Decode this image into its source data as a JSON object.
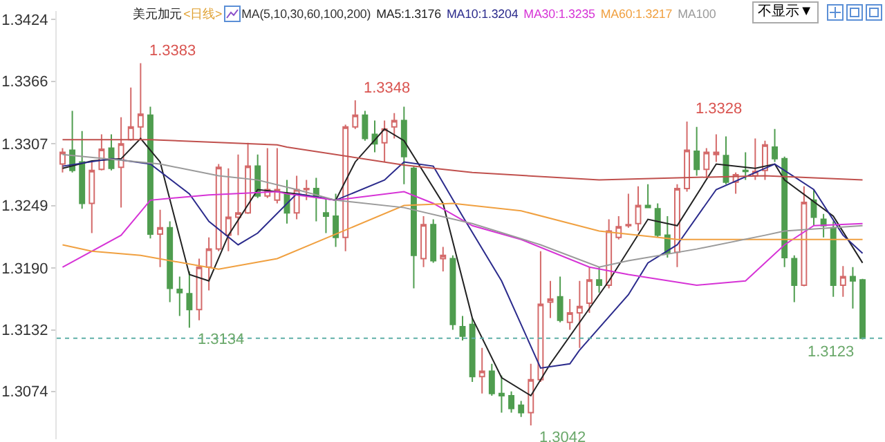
{
  "chart_data": {
    "type": "candlestick",
    "title": "美元加元",
    "subtitle": "<日线>",
    "legend_title": "MA(5,10,30,60,100,200)",
    "legend": "top",
    "categories": [
      null,
      null,
      null,
      null,
      null,
      null,
      null,
      null,
      null,
      null,
      null,
      null,
      null,
      null,
      null,
      null,
      null,
      null,
      null,
      null,
      null,
      null,
      null,
      null,
      null,
      null,
      null,
      null,
      null,
      null,
      null,
      null,
      null,
      null,
      null,
      null,
      null,
      null,
      null,
      null,
      null,
      null,
      null,
      null,
      null,
      null,
      null,
      null,
      null,
      null,
      null,
      null,
      null,
      null,
      null,
      null,
      null,
      null,
      null,
      null,
      null,
      null,
      null,
      null,
      null,
      null,
      null,
      null,
      null,
      null,
      null,
      null,
      null,
      null,
      null,
      null,
      null,
      null,
      null,
      null,
      null,
      null,
      null
    ],
    "ohlc": [
      [
        1.3288,
        1.3303,
        1.328,
        1.3299
      ],
      [
        1.3301,
        1.3338,
        1.328,
        1.3282
      ],
      [
        1.329,
        1.3319,
        1.3246,
        1.3251
      ],
      [
        1.3251,
        1.329,
        1.3223,
        1.3282
      ],
      [
        1.3283,
        1.3316,
        1.3282,
        1.3302
      ],
      [
        1.3303,
        1.3316,
        1.3282,
        1.3284
      ],
      [
        1.3285,
        1.3332,
        1.3247,
        1.3307
      ],
      [
        1.3311,
        1.336,
        1.331,
        1.3323
      ],
      [
        1.3323,
        1.3383,
        1.3311,
        1.3335
      ],
      [
        1.3334,
        1.3342,
        1.3218,
        1.3222
      ],
      [
        1.3222,
        1.3245,
        1.3191,
        1.3228
      ],
      [
        1.3228,
        1.3234,
        1.3158,
        1.3171
      ],
      [
        1.317,
        1.3182,
        1.3145,
        1.3167
      ],
      [
        1.3166,
        1.3187,
        1.3134,
        1.3151
      ],
      [
        1.3151,
        1.3199,
        1.3141,
        1.3191
      ],
      [
        1.3191,
        1.3219,
        1.3169,
        1.3208
      ],
      [
        1.3208,
        1.3288,
        1.3206,
        1.3285
      ],
      [
        1.3221,
        1.3284,
        1.3206,
        1.3238
      ],
      [
        1.3238,
        1.3297,
        1.3221,
        1.3242
      ],
      [
        1.3242,
        1.3308,
        1.3241,
        1.3286
      ],
      [
        1.3286,
        1.3297,
        1.3256,
        1.3258
      ],
      [
        1.3258,
        1.3303,
        1.3256,
        1.3264
      ],
      [
        1.3254,
        1.3303,
        1.3251,
        1.3264
      ],
      [
        1.326,
        1.3273,
        1.3232,
        1.3242
      ],
      [
        1.3242,
        1.3277,
        1.3236,
        1.3264
      ],
      [
        1.3264,
        1.3273,
        1.3254,
        1.3265
      ],
      [
        1.3265,
        1.3275,
        1.3234,
        1.3257
      ],
      [
        1.3242,
        1.3256,
        1.3223,
        1.3239
      ],
      [
        1.3239,
        1.326,
        1.321,
        1.3219
      ],
      [
        1.3219,
        1.3325,
        1.3206,
        1.3323
      ],
      [
        1.3323,
        1.3348,
        1.3321,
        1.3334
      ],
      [
        1.3334,
        1.3338,
        1.331,
        1.3312
      ],
      [
        1.3316,
        1.3329,
        1.3299,
        1.3307
      ],
      [
        1.3308,
        1.3329,
        1.329,
        1.3321
      ],
      [
        1.3323,
        1.3336,
        1.3312,
        1.3329
      ],
      [
        1.3329,
        1.3342,
        1.3269,
        1.3295
      ],
      [
        1.3284,
        1.3286,
        1.3171,
        1.3202
      ],
      [
        1.3199,
        1.3239,
        1.3191,
        1.3231
      ],
      [
        1.3231,
        1.3236,
        1.3195,
        1.3197
      ],
      [
        1.3199,
        1.321,
        1.3187,
        1.3202
      ],
      [
        1.3199,
        1.3202,
        1.3132,
        1.3137
      ],
      [
        1.3135,
        1.3145,
        1.3122,
        1.3126
      ],
      [
        1.3137,
        1.3143,
        1.3083,
        1.3088
      ],
      [
        1.3088,
        1.3115,
        1.3072,
        1.3093
      ],
      [
        1.3093,
        1.31,
        1.307,
        1.3072
      ],
      [
        1.3072,
        1.3089,
        1.3054,
        1.307
      ],
      [
        1.307,
        1.3074,
        1.3054,
        1.3058
      ],
      [
        1.3061,
        1.3065,
        1.305,
        1.3054
      ],
      [
        1.3054,
        1.31,
        1.3042,
        1.3085
      ],
      [
        1.3085,
        1.3206,
        1.3083,
        1.3156
      ],
      [
        1.3158,
        1.3178,
        1.3143,
        1.3161
      ],
      [
        1.3163,
        1.3182,
        1.3139,
        1.3141
      ],
      [
        1.3139,
        1.3161,
        1.3132,
        1.3148
      ],
      [
        1.3148,
        1.3178,
        1.3115,
        1.3154
      ],
      [
        1.3157,
        1.3191,
        1.3148,
        1.3179
      ],
      [
        1.3179,
        1.3191,
        1.3167,
        1.3174
      ],
      [
        1.3174,
        1.3236,
        1.3171,
        1.3225
      ],
      [
        1.3219,
        1.3239,
        1.3217,
        1.3229
      ],
      [
        1.323,
        1.326,
        1.3228,
        1.3231
      ],
      [
        1.3232,
        1.3267,
        1.3225,
        1.3249
      ],
      [
        1.3249,
        1.3269,
        1.3247,
        1.3247
      ],
      [
        1.3246,
        1.3251,
        1.3219,
        1.3221
      ],
      [
        1.3221,
        1.3239,
        1.32,
        1.3204
      ],
      [
        1.3205,
        1.3269,
        1.3191,
        1.3265
      ],
      [
        1.3265,
        1.3328,
        1.3262,
        1.3301
      ],
      [
        1.33,
        1.3323,
        1.3277,
        1.3283
      ],
      [
        1.3283,
        1.3303,
        1.3275,
        1.3299
      ],
      [
        1.3297,
        1.3316,
        1.329,
        1.3299
      ],
      [
        1.3296,
        1.3314,
        1.3269,
        1.3271
      ],
      [
        1.3271,
        1.328,
        1.326,
        1.3278
      ],
      [
        1.3282,
        1.3299,
        1.3273,
        1.3281
      ],
      [
        1.3277,
        1.3312,
        1.3273,
        1.3281
      ],
      [
        1.3282,
        1.331,
        1.3273,
        1.3306
      ],
      [
        1.3304,
        1.3321,
        1.329,
        1.3293
      ],
      [
        1.3293,
        1.3295,
        1.3191,
        1.32
      ],
      [
        1.3199,
        1.3202,
        1.3158,
        1.3174
      ],
      [
        1.3174,
        1.3267,
        1.3173,
        1.3252
      ],
      [
        1.3254,
        1.3264,
        1.323,
        1.3238
      ],
      [
        1.3236,
        1.3241,
        1.3219,
        1.323
      ],
      [
        1.3228,
        1.3234,
        1.3163,
        1.3174
      ],
      [
        1.3174,
        1.3192,
        1.3163,
        1.3182
      ],
      [
        1.3182,
        1.3191,
        1.3152,
        1.3178
      ],
      [
        1.3179,
        1.318,
        1.3123,
        1.3124
      ]
    ],
    "colors": [
      "#d46a6a",
      "#4f9d4f",
      "#4f9d4f",
      "#d46a6a",
      "#d46a6a",
      "#4f9d4f",
      "#d46a6a",
      "#d46a6a",
      "#d46a6a",
      "#4f9d4f",
      "#d46a6a",
      "#4f9d4f",
      "#4f9d4f",
      "#4f9d4f",
      "#d46a6a",
      "#d46a6a",
      "#d46a6a",
      "#d46a6a",
      "#d46a6a",
      "#d46a6a",
      "#4f9d4f",
      "#d46a6a",
      "#d46a6a",
      "#4f9d4f",
      "#d46a6a",
      "#d46a6a",
      "#4f9d4f",
      "#4f9d4f",
      "#4f9d4f",
      "#d46a6a",
      "#d46a6a",
      "#4f9d4f",
      "#4f9d4f",
      "#d46a6a",
      "#d46a6a",
      "#4f9d4f",
      "#4f9d4f",
      "#d46a6a",
      "#4f9d4f",
      "#d46a6a",
      "#4f9d4f",
      "#4f9d4f",
      "#4f9d4f",
      "#d46a6a",
      "#4f9d4f",
      "#4f9d4f",
      "#4f9d4f",
      "#4f9d4f",
      "#d46a6a",
      "#d46a6a",
      "#d46a6a",
      "#4f9d4f",
      "#d46a6a",
      "#d46a6a",
      "#d46a6a",
      "#4f9d4f",
      "#d46a6a",
      "#d46a6a",
      "#d46a6a",
      "#d46a6a",
      "#4f9d4f",
      "#4f9d4f",
      "#4f9d4f",
      "#d46a6a",
      "#d46a6a",
      "#4f9d4f",
      "#d46a6a",
      "#d46a6a",
      "#4f9d4f",
      "#d46a6a",
      "#4f9d4f",
      "#d46a6a",
      "#d46a6a",
      "#4f9d4f",
      "#4f9d4f",
      "#4f9d4f",
      "#d46a6a",
      "#4f9d4f",
      "#4f9d4f",
      "#4f9d4f",
      "#d46a6a",
      "#4f9d4f",
      "#4f9d4f"
    ],
    "series": [
      {
        "type": "line",
        "name": "MA5:1.3176",
        "color": "#222222",
        "values": [
          1.3284,
          null,
          null,
          1.3291,
          null,
          null,
          1.3293,
          null,
          1.3312,
          null,
          1.329,
          null,
          null,
          1.3184,
          null,
          1.3178,
          null,
          1.3221,
          null,
          null,
          1.3264,
          null,
          null,
          null,
          1.326,
          null,
          null,
          null,
          1.3254,
          null,
          1.329,
          null,
          null,
          1.3321,
          null,
          1.331,
          null,
          null,
          null,
          1.3251,
          null,
          null,
          1.3143,
          null,
          null,
          1.3087,
          null,
          null,
          1.307,
          null,
          1.31,
          null,
          null,
          null,
          1.3152,
          null,
          1.3178,
          null,
          null,
          null,
          1.3236,
          null,
          null,
          1.323,
          null,
          null,
          null,
          1.3288,
          null,
          null,
          null,
          1.3284,
          null,
          1.3288,
          1.3273,
          null,
          null,
          null,
          null,
          1.3239,
          null,
          null,
          1.3195
        ]
      },
      {
        "type": "line",
        "name": "MA10:1.3204",
        "color": "#2b2b8c",
        "values": [
          1.3286,
          null,
          null,
          null,
          null,
          1.3293,
          null,
          null,
          null,
          1.3288,
          null,
          null,
          null,
          1.326,
          null,
          1.3234,
          null,
          null,
          1.3212,
          null,
          1.3223,
          null,
          null,
          null,
          1.326,
          null,
          null,
          null,
          1.3254,
          null,
          null,
          null,
          null,
          1.3273,
          null,
          1.329,
          null,
          null,
          1.3286,
          null,
          null,
          1.3239,
          null,
          null,
          null,
          1.3178,
          null,
          null,
          null,
          1.3096,
          null,
          null,
          1.31,
          1.3113,
          null,
          null,
          null,
          null,
          1.3165,
          null,
          1.3195,
          null,
          null,
          1.3212,
          null,
          null,
          null,
          1.3264,
          null,
          null,
          null,
          null,
          null,
          1.3288,
          null,
          null,
          null,
          1.3264,
          null,
          null,
          1.3221,
          null,
          1.3204
        ]
      },
      {
        "type": "line",
        "name": "MA30:1.3235",
        "color": "#d633d6",
        "values": [
          1.3191,
          null,
          null,
          null,
          null,
          null,
          1.3221,
          null,
          null,
          1.3254,
          null,
          null,
          null,
          null,
          null,
          1.3259,
          null,
          null,
          null,
          null,
          null,
          null,
          1.3262,
          1.326,
          null,
          null,
          null,
          null,
          1.3254,
          null,
          null,
          null,
          null,
          null,
          null,
          1.3262,
          null,
          null,
          1.3251,
          null,
          null,
          null,
          1.323,
          null,
          null,
          null,
          null,
          1.3217,
          null,
          null,
          null,
          null,
          null,
          null,
          1.3191,
          null,
          null,
          null,
          1.3184,
          null,
          null,
          null,
          null,
          null,
          null,
          1.3174,
          null,
          null,
          null,
          null,
          1.3178,
          null,
          null,
          null,
          1.3212,
          null,
          null,
          1.323,
          null,
          null,
          null,
          null,
          1.3232
        ]
      },
      {
        "type": "line",
        "name": "MA60:1.3217",
        "color": "#f0a040",
        "values": [
          1.3212,
          null,
          null,
          1.3206,
          null,
          null,
          null,
          null,
          1.3202,
          null,
          null,
          null,
          null,
          null,
          null,
          null,
          1.3189,
          null,
          null,
          null,
          null,
          null,
          1.3199,
          null,
          null,
          null,
          null,
          null,
          null,
          null,
          null,
          null,
          null,
          null,
          null,
          1.3249,
          null,
          null,
          null,
          null,
          1.3251,
          null,
          null,
          null,
          null,
          null,
          null,
          1.3244,
          null,
          null,
          null,
          null,
          null,
          null,
          null,
          1.3225,
          null,
          null,
          null,
          null,
          null,
          null,
          null,
          1.3217,
          null,
          null,
          null,
          null,
          null,
          null,
          null,
          null,
          1.3217,
          null,
          null,
          null,
          null,
          null,
          null,
          null,
          null,
          null,
          1.3217
        ]
      },
      {
        "type": "line",
        "name": "MA100",
        "color": "#9a9a9a",
        "values": [
          1.3297,
          null,
          null,
          null,
          null,
          null,
          null,
          null,
          null,
          null,
          1.3288,
          null,
          null,
          null,
          null,
          null,
          1.3277,
          null,
          null,
          null,
          1.3273,
          null,
          null,
          null,
          1.3264,
          null,
          null,
          null,
          1.3254,
          null,
          null,
          null,
          null,
          null,
          null,
          1.3247,
          null,
          null,
          null,
          null,
          null,
          null,
          1.3232,
          null,
          null,
          null,
          null,
          null,
          null,
          1.3212,
          null,
          null,
          null,
          null,
          null,
          1.3191,
          null,
          null,
          1.3197,
          null,
          null,
          null,
          null,
          null,
          null,
          1.3208,
          null,
          null,
          null,
          null,
          null,
          null,
          1.3221,
          null,
          1.3225,
          null,
          null,
          null,
          null,
          null,
          null,
          null,
          1.323
        ]
      },
      {
        "type": "line",
        "color": "#c0504d",
        "values": [
          1.3311,
          null,
          null,
          null,
          null,
          null,
          null,
          null,
          null,
          1.3311,
          null,
          null,
          null,
          null,
          null,
          null,
          null,
          null,
          null,
          null,
          null,
          null,
          1.3306,
          1.3304,
          null,
          null,
          null,
          null,
          null,
          null,
          null,
          null,
          null,
          null,
          null,
          1.3287,
          null,
          null,
          null,
          null,
          null,
          null,
          1.328,
          null,
          null,
          null,
          null,
          null,
          null,
          null,
          null,
          null,
          null,
          null,
          null,
          1.3273,
          null,
          null,
          null,
          null,
          null,
          null,
          null,
          1.3275,
          null,
          null,
          null,
          null,
          null,
          null,
          null,
          null,
          1.3277,
          null,
          null,
          null,
          null,
          null,
          null,
          null,
          null,
          null,
          1.3273
        ]
      }
    ],
    "ylim": [
      1.3029,
      1.3432
    ],
    "yticks": [
      {
        "value": 1.3074,
        "label": "1.3074"
      },
      {
        "value": 1.3132,
        "label": "1.3132"
      },
      {
        "value": 1.319,
        "label": "1.3190"
      },
      {
        "value": 1.3249,
        "label": "1.3249"
      },
      {
        "value": 1.3307,
        "label": "1.3307"
      },
      {
        "value": 1.3366,
        "label": "1.3366"
      },
      {
        "value": 1.3424,
        "label": "1.3424"
      }
    ],
    "tick_labels": "y",
    "ref_lines": [
      {
        "axis": "y",
        "value": 1.3124,
        "color": "#5fb0a8",
        "line_style": "dotted"
      }
    ],
    "annotations": [
      "1.3383",
      "1.3134",
      "1.3348",
      "1.3042",
      "1.3328",
      "1.3123",
      "不显示▼"
    ]
  }
}
